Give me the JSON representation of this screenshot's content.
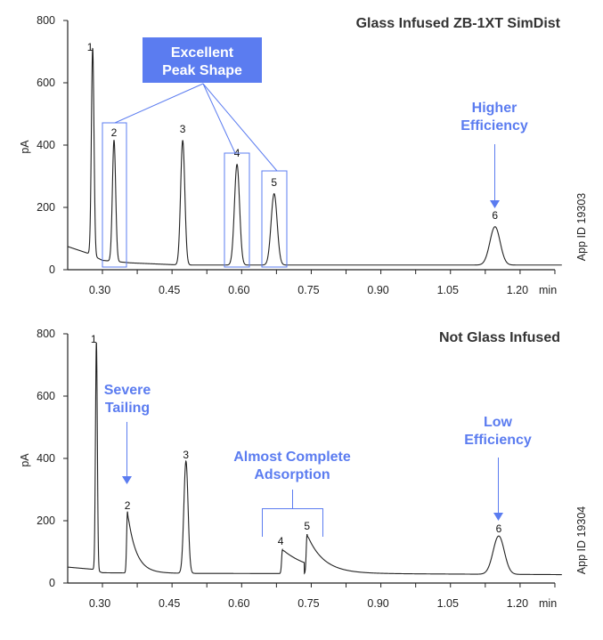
{
  "colors": {
    "accent": "#5b7cf0",
    "trace": "#222222",
    "axis": "#222222"
  },
  "chart_data": [
    {
      "type": "line",
      "title": "Glass Infused ZB-1XT SimDist",
      "side_label": "App ID 19303",
      "xlabel": "min",
      "ylabel": "pA",
      "xlim": [
        0.226,
        1.29
      ],
      "ylim": [
        0,
        800
      ],
      "xticks": [
        "0.30",
        "0.45",
        "0.60",
        "0.75",
        "0.90",
        "1.05",
        "1.20"
      ],
      "yticks": [
        "0",
        "200",
        "400",
        "600",
        "800"
      ],
      "grid": false,
      "baseline": [
        [
          0.226,
          74
        ],
        [
          0.27,
          52
        ],
        [
          0.3,
          30
        ],
        [
          0.36,
          22
        ],
        [
          0.47,
          15
        ],
        [
          0.75,
          15
        ],
        [
          1.29,
          15
        ]
      ],
      "peaks": [
        {
          "label": "1",
          "rt": 0.279,
          "height": 666,
          "sigma": 0.0028,
          "tail": 0
        },
        {
          "label": "2",
          "rt": 0.325,
          "height": 389,
          "sigma": 0.0035,
          "tail": 0
        },
        {
          "label": "3",
          "rt": 0.473,
          "height": 400,
          "sigma": 0.0045,
          "tail": 0
        },
        {
          "label": "4",
          "rt": 0.59,
          "height": 323,
          "sigma": 0.0055,
          "tail": 0
        },
        {
          "label": "5",
          "rt": 0.67,
          "height": 229,
          "sigma": 0.0065,
          "tail": 0
        },
        {
          "label": "6",
          "rt": 1.146,
          "height": 123,
          "sigma": 0.011,
          "tail": 0
        }
      ],
      "annotations": {
        "peak_shape": [
          "Excellent",
          "Peak Shape"
        ],
        "efficiency": [
          "Higher",
          "Efficiency"
        ]
      }
    },
    {
      "type": "line",
      "title": "Not Glass Infused",
      "side_label": "App ID 19304",
      "xlabel": "min",
      "ylabel": "pA",
      "xlim": [
        0.226,
        1.29
      ],
      "ylim": [
        0,
        800
      ],
      "xticks": [
        "0.30",
        "0.45",
        "0.60",
        "0.75",
        "0.90",
        "1.05",
        "1.20"
      ],
      "yticks": [
        "0",
        "200",
        "400",
        "600",
        "800"
      ],
      "grid": false,
      "baseline": [
        [
          0.226,
          51
        ],
        [
          0.28,
          44
        ],
        [
          0.3,
          33
        ],
        [
          0.48,
          31
        ],
        [
          0.9,
          30
        ],
        [
          1.29,
          27
        ]
      ],
      "peaks": [
        {
          "label": "1",
          "rt": 0.287,
          "height": 734,
          "sigma": 0.002,
          "tail": 0
        },
        {
          "label": "2",
          "rt": 0.354,
          "height": 197,
          "sigma": 0.0018,
          "tail": 0.018
        },
        {
          "label": "3",
          "rt": 0.48,
          "height": 360,
          "sigma": 0.0045,
          "tail": 0
        },
        {
          "label": "4",
          "rt": 0.688,
          "height": 77,
          "sigma": 0.0018,
          "tail": 0.06
        },
        {
          "label": "5",
          "rt": 0.741,
          "height": 126,
          "sigma": 0.0018,
          "tail": 0.035
        },
        {
          "label": "6",
          "rt": 1.154,
          "height": 123,
          "sigma": 0.012,
          "tail": 0
        }
      ],
      "annotations": {
        "tailing": [
          "Severe",
          "Tailing"
        ],
        "adsorption": [
          "Almost Complete",
          "Adsorption"
        ],
        "efficiency": [
          "Low",
          "Efficiency"
        ]
      }
    }
  ]
}
